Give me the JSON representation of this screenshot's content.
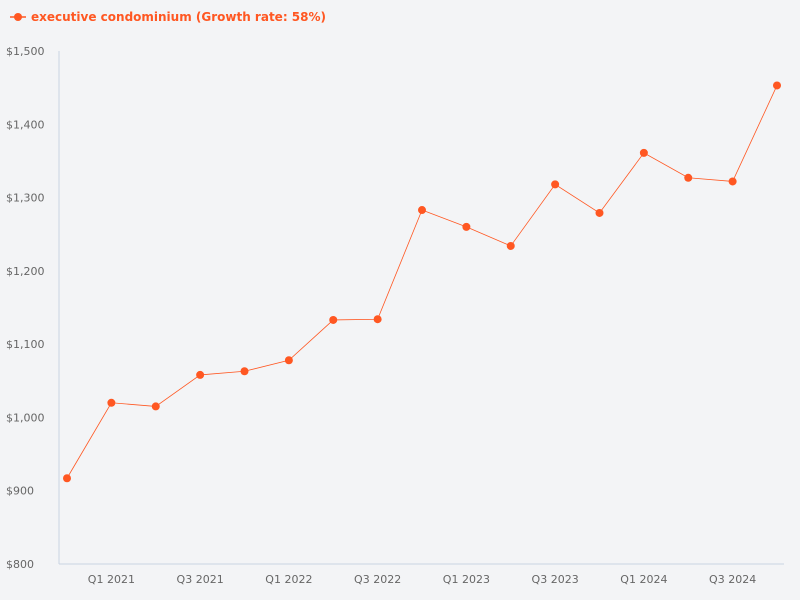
{
  "chart_data": {
    "type": "line",
    "title": "",
    "xlabel": "",
    "ylabel": "",
    "legend": {
      "placement": "top-left",
      "label": "executive condominium (Growth rate: 58%)"
    },
    "ylim": [
      800,
      1500
    ],
    "yticks": [
      800,
      900,
      1000,
      1100,
      1200,
      1300,
      1400,
      1500
    ],
    "ytick_labels": [
      "$800",
      "$900",
      "$1,000",
      "$1,100",
      "$1,200",
      "$1,300",
      "$1,400",
      "$1,500"
    ],
    "x": [
      "Q4 2020",
      "Q1 2021",
      "Q2 2021",
      "Q3 2021",
      "Q4 2021",
      "Q1 2022",
      "Q2 2022",
      "Q3 2022",
      "Q4 2022",
      "Q1 2023",
      "Q2 2023",
      "Q3 2023",
      "Q4 2023",
      "Q1 2024",
      "Q2 2024",
      "Q3 2024",
      "Q4 2024"
    ],
    "xtick_labels": [
      "Q1 2021",
      "Q3 2021",
      "Q1 2022",
      "Q3 2022",
      "Q1 2023",
      "Q3 2023",
      "Q1 2024",
      "Q3 2024"
    ],
    "grid": false,
    "series": [
      {
        "name": "executive condominium",
        "color": "#ff5722",
        "values": [
          917,
          1020,
          1015,
          1058,
          1063,
          1078,
          1133,
          1134,
          1283,
          1260,
          1234,
          1318,
          1279,
          1361,
          1327,
          1322,
          1453
        ]
      }
    ],
    "colors": {
      "series": "#ff5722",
      "axis": "#c9d3e3",
      "background": "#f3f4f6"
    }
  }
}
